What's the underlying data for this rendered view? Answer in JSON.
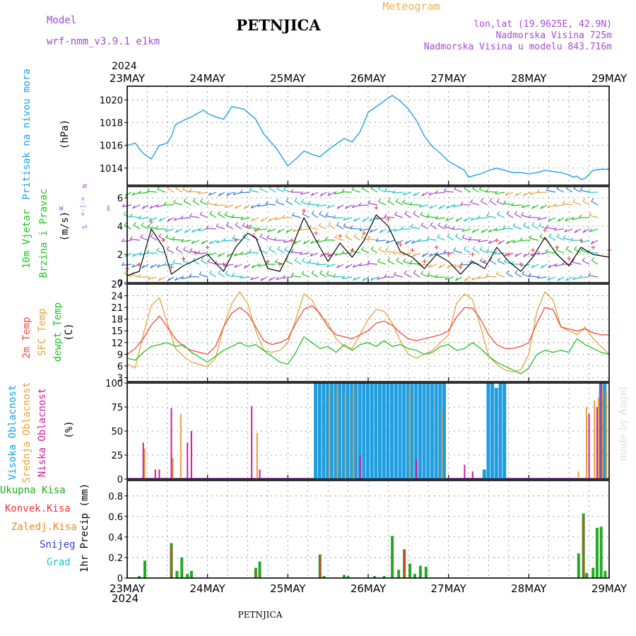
{
  "header": {
    "model_label": "Model",
    "model_name": "wrf-nmm_v3.9.1  e1km",
    "station": "PETNJICA",
    "meteogram": "Meteogram",
    "coords": "lon,lat (19.9625E, 42.9N)",
    "elevation": "Nadmorska Visina 725m",
    "model_elevation": "Nadmorska Visina u modelu 843.716m",
    "footer_station": "PETNJICA",
    "watermark": "made by Angel"
  },
  "colors": {
    "pressure": "#1fa2e6",
    "temp2m": "#ee4b3a",
    "sfc": "#e6a23c",
    "dewpt": "#1fc41f",
    "high_cloud": "#1e9de0",
    "mid_cloud": "#e6a23c",
    "low_cloud": "#d01aa0",
    "total_precip": "#22aa22",
    "conv_precip": "#ee3333",
    "frozen_precip": "#ee8822",
    "snow": "#3a3ad0",
    "hail": "#22c4c4",
    "purple": "#a24bd0"
  },
  "time_axis": {
    "year": "2024",
    "days": [
      "23MAY",
      "24MAY",
      "25MAY",
      "26MAY",
      "27MAY",
      "28MAY",
      "29MAY"
    ]
  },
  "chart_data": [
    {
      "type": "line",
      "id": "pressure",
      "ylabel_lines": [
        "Pritisak na nivou mora"
      ],
      "unit": "(hPa)",
      "ylim": [
        1012.5,
        1021.2
      ],
      "yticks": [
        1014,
        1016,
        1018,
        1020
      ],
      "xrange_days": [
        0,
        6
      ],
      "series": [
        {
          "x": [
            0.0,
            0.1,
            0.15,
            0.2,
            0.3,
            0.4,
            0.5,
            0.55,
            0.6,
            0.7,
            0.8,
            0.95,
            1.0,
            1.1,
            1.2,
            1.25,
            1.3,
            1.45,
            1.6,
            1.7,
            1.85,
            2.0,
            2.1,
            2.2,
            2.3,
            2.4,
            2.5,
            2.6,
            2.7,
            2.8,
            2.9,
            3.0,
            3.1,
            3.2,
            3.3,
            3.4,
            3.5,
            3.6,
            3.7,
            3.8,
            3.9,
            4.0,
            4.1,
            4.2,
            4.25,
            4.3,
            4.4,
            4.5,
            4.6,
            4.7,
            4.8,
            4.9,
            5.0,
            5.1,
            5.2,
            5.3,
            5.4,
            5.5,
            5.55,
            5.6,
            5.65,
            5.7,
            5.8,
            5.9,
            6.0
          ],
          "y": [
            1016.0,
            1016.2,
            1015.7,
            1015.3,
            1014.8,
            1016.0,
            1016.2,
            1016.8,
            1017.8,
            1018.2,
            1018.5,
            1019.1,
            1018.8,
            1018.5,
            1018.3,
            1018.8,
            1019.4,
            1019.2,
            1018.3,
            1017.0,
            1015.8,
            1014.2,
            1014.8,
            1015.5,
            1015.2,
            1015.0,
            1015.6,
            1016.1,
            1016.6,
            1016.3,
            1017.2,
            1018.9,
            1019.4,
            1019.9,
            1020.4,
            1019.9,
            1019.2,
            1018.2,
            1016.8,
            1015.9,
            1015.3,
            1014.6,
            1014.2,
            1013.8,
            1013.2,
            1013.3,
            1013.5,
            1013.8,
            1014.0,
            1013.8,
            1013.6,
            1013.6,
            1013.5,
            1013.6,
            1013.8,
            1013.7,
            1013.6,
            1013.4,
            1013.2,
            1013.3,
            1013.0,
            1013.1,
            1013.8,
            1013.9,
            1013.9
          ]
        }
      ]
    },
    {
      "type": "barbs",
      "id": "wind",
      "ylabel_lines": [
        "10m Vjetar",
        "Brzina i Pravac"
      ],
      "unit": "(m/s)",
      "compass": {
        "n": "N",
        "s": "S",
        "w": "W",
        "e": "E"
      },
      "ylim": [
        0,
        6.8
      ],
      "yticks": [
        0,
        2,
        4,
        6
      ],
      "xrange_days": [
        0,
        6
      ],
      "series": [
        {
          "name": "speed",
          "x": [
            0.0,
            0.15,
            0.3,
            0.45,
            0.55,
            0.7,
            0.85,
            1.0,
            1.2,
            1.35,
            1.5,
            1.6,
            1.75,
            1.9,
            2.05,
            2.2,
            2.35,
            2.5,
            2.65,
            2.8,
            2.95,
            3.1,
            3.25,
            3.4,
            3.55,
            3.7,
            3.85,
            4.0,
            4.15,
            4.3,
            4.45,
            4.6,
            4.75,
            4.9,
            5.05,
            5.2,
            5.35,
            5.5,
            5.65,
            5.8,
            6.0
          ],
          "y": [
            0.5,
            0.8,
            3.8,
            2.5,
            0.6,
            1.2,
            1.6,
            2.0,
            0.8,
            2.5,
            3.5,
            3.2,
            1.0,
            0.8,
            2.5,
            4.6,
            3.0,
            1.5,
            2.8,
            1.8,
            3.0,
            4.8,
            4.0,
            2.2,
            1.8,
            1.0,
            2.0,
            1.5,
            0.6,
            1.5,
            1.0,
            2.5,
            1.5,
            0.8,
            1.8,
            3.2,
            2.0,
            1.2,
            2.5,
            2.0,
            1.8
          ]
        }
      ],
      "barb_levels": [
        0.4,
        1.3,
        2.1,
        3.0,
        3.8,
        4.6,
        5.5,
        6.4
      ]
    },
    {
      "type": "line",
      "id": "temperature",
      "ylabel_lines": [
        "2m Temp",
        "SFC Temp",
        "dewpt Temp"
      ],
      "unit": "(C)",
      "ylim": [
        2,
        27
      ],
      "yticks": [
        3,
        6,
        9,
        12,
        15,
        18,
        21,
        24,
        27
      ],
      "xrange_days": [
        0,
        6
      ],
      "series": [
        {
          "name": "2m Temp",
          "x": [
            0.0,
            0.1,
            0.2,
            0.3,
            0.4,
            0.5,
            0.6,
            0.7,
            0.8,
            1.0,
            1.1,
            1.2,
            1.3,
            1.4,
            1.5,
            1.6,
            1.7,
            1.8,
            1.9,
            2.0,
            2.1,
            2.2,
            2.3,
            2.4,
            2.5,
            2.6,
            2.7,
            2.8,
            2.9,
            3.0,
            3.1,
            3.2,
            3.3,
            3.4,
            3.5,
            3.6,
            3.7,
            3.8,
            3.9,
            4.0,
            4.1,
            4.2,
            4.3,
            4.4,
            4.5,
            4.6,
            4.7,
            4.8,
            4.9,
            5.0,
            5.1,
            5.2,
            5.3,
            5.4,
            5.5,
            5.6,
            5.7,
            5.8,
            5.9,
            6.0
          ],
          "y": [
            9.0,
            10.5,
            13.0,
            16.5,
            18.8,
            16.0,
            13.0,
            11.0,
            10.0,
            9.0,
            11.0,
            16.0,
            19.5,
            21.0,
            19.5,
            16.0,
            12.5,
            11.5,
            12.0,
            13.0,
            17.0,
            20.5,
            21.5,
            19.5,
            16.0,
            14.0,
            13.5,
            13.0,
            14.0,
            15.0,
            17.0,
            17.5,
            16.5,
            14.5,
            13.0,
            12.5,
            13.0,
            13.5,
            14.0,
            15.0,
            18.5,
            21.0,
            20.8,
            18.0,
            14.0,
            11.5,
            10.5,
            10.5,
            11.0,
            12.0,
            17.0,
            21.0,
            20.5,
            16.0,
            15.5,
            15.0,
            15.5,
            14.5,
            14.0,
            14.0
          ]
        },
        {
          "name": "SFC Temp",
          "x": [
            0.0,
            0.1,
            0.2,
            0.3,
            0.4,
            0.5,
            0.6,
            0.7,
            0.8,
            1.0,
            1.1,
            1.2,
            1.3,
            1.4,
            1.5,
            1.6,
            1.7,
            1.8,
            1.9,
            2.0,
            2.1,
            2.2,
            2.3,
            2.4,
            2.5,
            2.6,
            2.7,
            2.8,
            2.9,
            3.0,
            3.1,
            3.2,
            3.3,
            3.4,
            3.5,
            3.6,
            3.7,
            3.8,
            3.9,
            4.0,
            4.1,
            4.2,
            4.3,
            4.4,
            4.5,
            4.6,
            4.7,
            4.8,
            4.9,
            5.0,
            5.1,
            5.2,
            5.3,
            5.4,
            5.5,
            5.6,
            5.7,
            5.8,
            5.9,
            6.0
          ],
          "y": [
            6.5,
            5.5,
            14.0,
            21.5,
            23.5,
            17.0,
            10.5,
            8.5,
            7.0,
            5.8,
            8.0,
            16.0,
            22.0,
            25.0,
            22.0,
            15.0,
            10.0,
            9.5,
            10.0,
            12.0,
            18.0,
            24.5,
            23.0,
            19.0,
            17.0,
            13.0,
            11.0,
            10.5,
            14.0,
            18.0,
            20.5,
            20.0,
            17.0,
            12.5,
            9.0,
            8.0,
            9.0,
            10.0,
            12.0,
            14.0,
            22.0,
            24.5,
            23.0,
            16.0,
            8.5,
            6.5,
            5.0,
            4.5,
            5.0,
            9.0,
            20.0,
            25.0,
            23.0,
            16.0,
            15.0,
            14.0,
            16.0,
            13.0,
            11.0,
            9.0
          ]
        },
        {
          "name": "dewpt Temp",
          "x": [
            0.0,
            0.1,
            0.2,
            0.3,
            0.4,
            0.5,
            0.6,
            0.7,
            0.8,
            1.0,
            1.1,
            1.2,
            1.3,
            1.4,
            1.5,
            1.6,
            1.7,
            1.8,
            1.9,
            2.0,
            2.1,
            2.2,
            2.3,
            2.4,
            2.5,
            2.6,
            2.7,
            2.8,
            2.9,
            3.0,
            3.1,
            3.2,
            3.3,
            3.4,
            3.5,
            3.6,
            3.7,
            3.8,
            3.9,
            4.0,
            4.1,
            4.2,
            4.3,
            4.4,
            4.5,
            4.6,
            4.7,
            4.8,
            4.9,
            5.0,
            5.1,
            5.2,
            5.3,
            5.4,
            5.5,
            5.6,
            5.7,
            5.8,
            5.9,
            6.0
          ],
          "y": [
            8.0,
            7.5,
            9.5,
            11.0,
            11.5,
            12.0,
            11.0,
            11.5,
            9.5,
            7.0,
            8.5,
            10.0,
            11.0,
            12.0,
            11.0,
            11.5,
            10.0,
            8.5,
            7.0,
            6.5,
            9.5,
            13.5,
            12.0,
            10.5,
            11.0,
            9.5,
            11.5,
            10.0,
            11.5,
            12.0,
            11.0,
            12.5,
            11.0,
            11.5,
            10.5,
            10.0,
            9.0,
            9.5,
            11.0,
            11.5,
            10.0,
            10.5,
            12.0,
            10.5,
            8.5,
            7.0,
            6.0,
            5.0,
            4.0,
            5.5,
            9.0,
            10.0,
            9.5,
            10.0,
            9.5,
            13.0,
            11.5,
            10.5,
            9.5,
            9.0
          ]
        }
      ]
    },
    {
      "type": "bar",
      "id": "cloudiness",
      "ylabel_lines": [
        "Visoka Oblacnost",
        "Srednja Oblacnost",
        "Niska Oblacnost"
      ],
      "unit": "(%)",
      "ylim": [
        0,
        100
      ],
      "yticks": [
        0,
        25,
        50,
        75,
        100
      ],
      "xrange_days": [
        0,
        6
      ],
      "series": [
        {
          "name": "Visoka Oblacnost",
          "x": [
            2.35,
            2.4,
            2.45,
            2.5,
            2.55,
            2.6,
            2.65,
            2.7,
            2.75,
            2.8,
            2.85,
            2.9,
            2.95,
            3.0,
            3.05,
            3.1,
            3.15,
            3.2,
            3.25,
            3.3,
            3.35,
            3.4,
            3.45,
            3.5,
            3.55,
            3.6,
            3.65,
            3.7,
            3.75,
            3.8,
            3.85,
            3.9,
            3.95,
            4.0,
            4.05,
            4.1,
            4.15,
            4.2,
            4.25,
            4.3,
            4.35,
            4.4,
            4.45,
            4.5,
            4.55,
            4.6,
            4.65,
            4.7,
            4.75,
            4.8,
            4.85,
            4.9,
            4.95,
            5.0,
            5.05,
            5.1,
            5.15,
            5.2,
            5.25,
            5.3,
            5.35,
            5.4,
            5.45,
            5.5,
            5.55,
            5.6,
            5.65,
            5.7,
            5.75,
            5.8,
            5.85,
            5.9,
            5.95
          ],
          "y": [
            100,
            100,
            100,
            100,
            100,
            100,
            100,
            100,
            100,
            100,
            100,
            100,
            100,
            100,
            100,
            100,
            100,
            100,
            100,
            100,
            100,
            100,
            100,
            100,
            100,
            100,
            100,
            100,
            100,
            100,
            100,
            100,
            100,
            0,
            0,
            0,
            0,
            0,
            0,
            0,
            0,
            0,
            10,
            100,
            100,
            95,
            100,
            100,
            0,
            0,
            0,
            0,
            0,
            0,
            0,
            0,
            0,
            0,
            0,
            0,
            0,
            0,
            0,
            0,
            0,
            0,
            0,
            0,
            0,
            0,
            0,
            100,
            100
          ]
        },
        {
          "name": "Srednja Oblacnost",
          "x": [
            0.2,
            0.55,
            0.65,
            1.6,
            2.5,
            2.6,
            2.7,
            2.8,
            3.5,
            3.9,
            5.6,
            5.7,
            5.8,
            5.85,
            5.9,
            5.95
          ],
          "y": [
            32,
            22,
            68,
            48,
            95,
            98,
            90,
            98,
            95,
            72,
            8,
            75,
            82,
            85,
            98,
            92
          ]
        },
        {
          "name": "Niska Oblacnost",
          "x": [
            0.2,
            0.35,
            0.4,
            0.55,
            0.75,
            0.8,
            1.55,
            1.65,
            2.9,
            3.6,
            4.2,
            4.3,
            5.75,
            5.85,
            5.9
          ],
          "y": [
            38,
            10,
            10,
            74,
            38,
            50,
            76,
            10,
            25,
            20,
            15,
            8,
            68,
            75,
            100
          ]
        }
      ]
    },
    {
      "type": "bar",
      "id": "precip",
      "legend": [
        "Ukupna  Kisa",
        "Konvek.Kisa",
        "Zaledj.Kisa",
        "Snijeg",
        "Grad"
      ],
      "ylabel_lines": [
        "1hr Precip (mm)"
      ],
      "ylim": [
        0,
        0.95
      ],
      "yticks": [
        0,
        0.2,
        0.4,
        0.6,
        0.8
      ],
      "xrange_days": [
        0,
        6
      ],
      "series": [
        {
          "name": "Ukupna  Kisa",
          "x": [
            0.15,
            0.22,
            0.55,
            0.62,
            0.68,
            0.75,
            0.8,
            1.6,
            1.65,
            2.4,
            2.45,
            2.7,
            2.75,
            3.08,
            3.2,
            3.3,
            3.38,
            3.45,
            3.52,
            3.58,
            3.65,
            3.72,
            5.62,
            5.68,
            5.72,
            5.8,
            5.85,
            5.9,
            5.95
          ],
          "y": [
            0.02,
            0.17,
            0.34,
            0.07,
            0.2,
            0.04,
            0.07,
            0.1,
            0.16,
            0.23,
            0.02,
            0.03,
            0.02,
            0.02,
            0.02,
            0.41,
            0.08,
            0.28,
            0.14,
            0.04,
            0.12,
            0.11,
            0.24,
            0.63,
            0.05,
            0.1,
            0.49,
            0.5,
            0.07
          ]
        },
        {
          "name": "Konvek.Kisa",
          "x": [
            0.55,
            1.6,
            2.4,
            3.45,
            5.68
          ],
          "y": [
            0.32,
            0.08,
            0.22,
            0.27,
            0.6
          ]
        }
      ]
    }
  ]
}
